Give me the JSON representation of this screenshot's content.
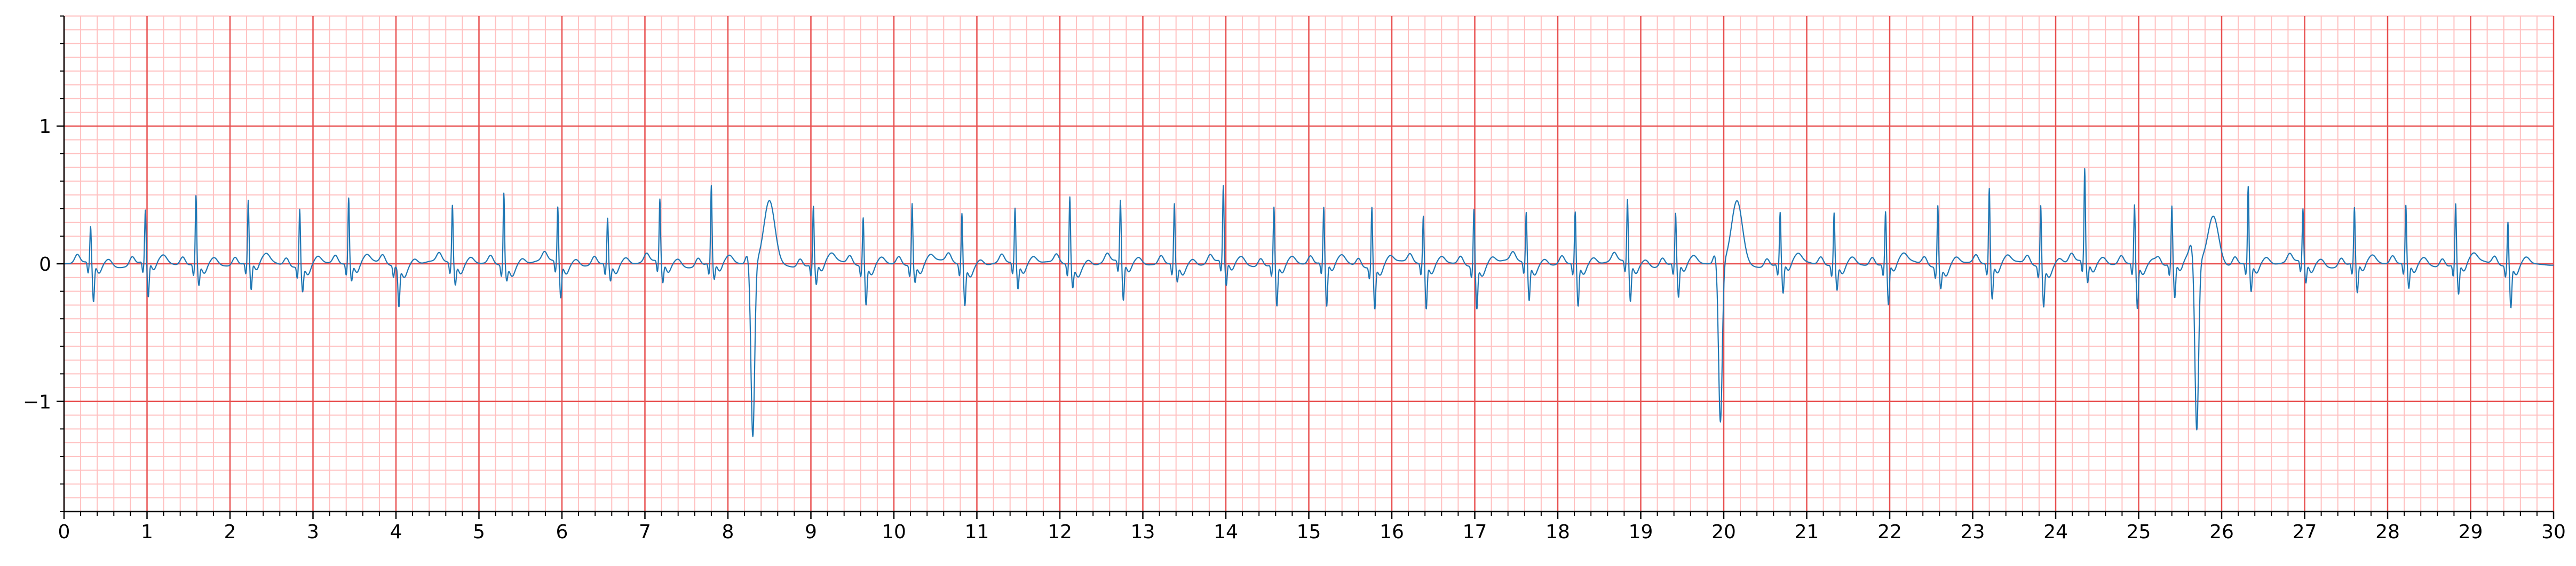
{
  "chart_data": {
    "type": "line",
    "title": "",
    "xlabel": "",
    "ylabel": "",
    "xlim": [
      0,
      30
    ],
    "ylim": [
      -1.8,
      1.8
    ],
    "x_ticks": [
      "0",
      "1",
      "2",
      "3",
      "4",
      "5",
      "6",
      "7",
      "8",
      "9",
      "10",
      "11",
      "12",
      "13",
      "14",
      "15",
      "16",
      "17",
      "18",
      "19",
      "20",
      "21",
      "22",
      "23",
      "24",
      "25",
      "26",
      "27",
      "28",
      "29",
      "30"
    ],
    "y_ticks": [
      {
        "value": 1,
        "label": "1"
      },
      {
        "value": 0,
        "label": "0"
      },
      {
        "value": -1,
        "label": "−1"
      }
    ],
    "grid": {
      "major": true,
      "minor": true,
      "major_x_step": 1,
      "minor_x_step": 0.2,
      "major_y_step": 1,
      "minor_y_step": 0.1
    },
    "colors": {
      "major_grid": "#e85050",
      "minor_grid": "#ffc0c0",
      "line": "#1f77b4",
      "axes": "#000000"
    },
    "series": [
      {
        "beats": [
          {
            "t": 0.32,
            "r": 0.26,
            "s": -0.28
          },
          {
            "t": 0.98,
            "r": 0.37,
            "s": -0.26
          },
          {
            "t": 1.59,
            "r": 0.5,
            "s": -0.15
          },
          {
            "t": 2.22,
            "r": 0.45,
            "s": -0.2
          },
          {
            "t": 2.84,
            "r": 0.42,
            "s": -0.18
          },
          {
            "t": 3.43,
            "r": 0.48,
            "s": -0.12
          },
          {
            "t": 4.0,
            "r": 0.0,
            "s": -0.28
          },
          {
            "t": 4.68,
            "r": 0.42,
            "s": -0.15
          },
          {
            "t": 5.3,
            "r": 0.53,
            "s": -0.1
          },
          {
            "t": 5.95,
            "r": 0.4,
            "s": -0.25
          },
          {
            "t": 6.55,
            "r": 0.33,
            "s": -0.12
          },
          {
            "t": 7.18,
            "r": 0.45,
            "s": -0.15
          },
          {
            "t": 7.8,
            "r": 0.56,
            "s": -0.12
          },
          {
            "t": 8.3,
            "r": 0.0,
            "s": -1.26,
            "wide": true,
            "t_wave": 0.45
          },
          {
            "t": 9.03,
            "r": 0.42,
            "s": -0.15
          },
          {
            "t": 9.63,
            "r": 0.35,
            "s": -0.28
          },
          {
            "t": 10.22,
            "r": 0.45,
            "s": -0.12
          },
          {
            "t": 10.82,
            "r": 0.38,
            "s": -0.28
          },
          {
            "t": 11.46,
            "r": 0.4,
            "s": -0.18
          },
          {
            "t": 12.12,
            "r": 0.5,
            "s": -0.15
          },
          {
            "t": 12.73,
            "r": 0.44,
            "s": -0.28
          },
          {
            "t": 13.38,
            "r": 0.44,
            "s": -0.12
          },
          {
            "t": 13.97,
            "r": 0.54,
            "s": -0.18
          },
          {
            "t": 14.58,
            "r": 0.42,
            "s": -0.3
          },
          {
            "t": 15.18,
            "r": 0.4,
            "s": -0.32
          },
          {
            "t": 15.76,
            "r": 0.44,
            "s": -0.3
          },
          {
            "t": 16.38,
            "r": 0.35,
            "s": -0.32
          },
          {
            "t": 16.99,
            "r": 0.42,
            "s": -0.3
          },
          {
            "t": 17.62,
            "r": 0.37,
            "s": -0.26
          },
          {
            "t": 18.21,
            "r": 0.38,
            "s": -0.3
          },
          {
            "t": 18.84,
            "r": 0.45,
            "s": -0.28
          },
          {
            "t": 19.42,
            "r": 0.36,
            "s": -0.25
          },
          {
            "t": 19.96,
            "r": 0.0,
            "s": -1.16,
            "wide": true,
            "t_wave": 0.45
          },
          {
            "t": 20.68,
            "r": 0.37,
            "s": -0.22
          },
          {
            "t": 21.33,
            "r": 0.38,
            "s": -0.18
          },
          {
            "t": 21.95,
            "r": 0.38,
            "s": -0.3
          },
          {
            "t": 22.58,
            "r": 0.45,
            "s": -0.15
          },
          {
            "t": 23.2,
            "r": 0.55,
            "s": -0.25
          },
          {
            "t": 23.82,
            "r": 0.45,
            "s": -0.28
          },
          {
            "t": 24.35,
            "r": 0.67,
            "s": -0.15
          },
          {
            "t": 24.95,
            "r": 0.43,
            "s": -0.32
          },
          {
            "t": 25.4,
            "r": 0.42,
            "s": -0.25
          },
          {
            "t": 25.7,
            "r": 0.0,
            "s": -1.24,
            "wide": true,
            "t_wave": 0.36
          },
          {
            "t": 26.32,
            "r": 0.56,
            "s": -0.2
          },
          {
            "t": 26.98,
            "r": 0.38,
            "s": -0.15
          },
          {
            "t": 27.6,
            "r": 0.4,
            "s": -0.22
          },
          {
            "t": 28.22,
            "r": 0.42,
            "s": -0.18
          },
          {
            "t": 28.82,
            "r": 0.44,
            "s": -0.22
          },
          {
            "t": 29.45,
            "r": 0.32,
            "s": -0.3
          }
        ]
      }
    ]
  }
}
